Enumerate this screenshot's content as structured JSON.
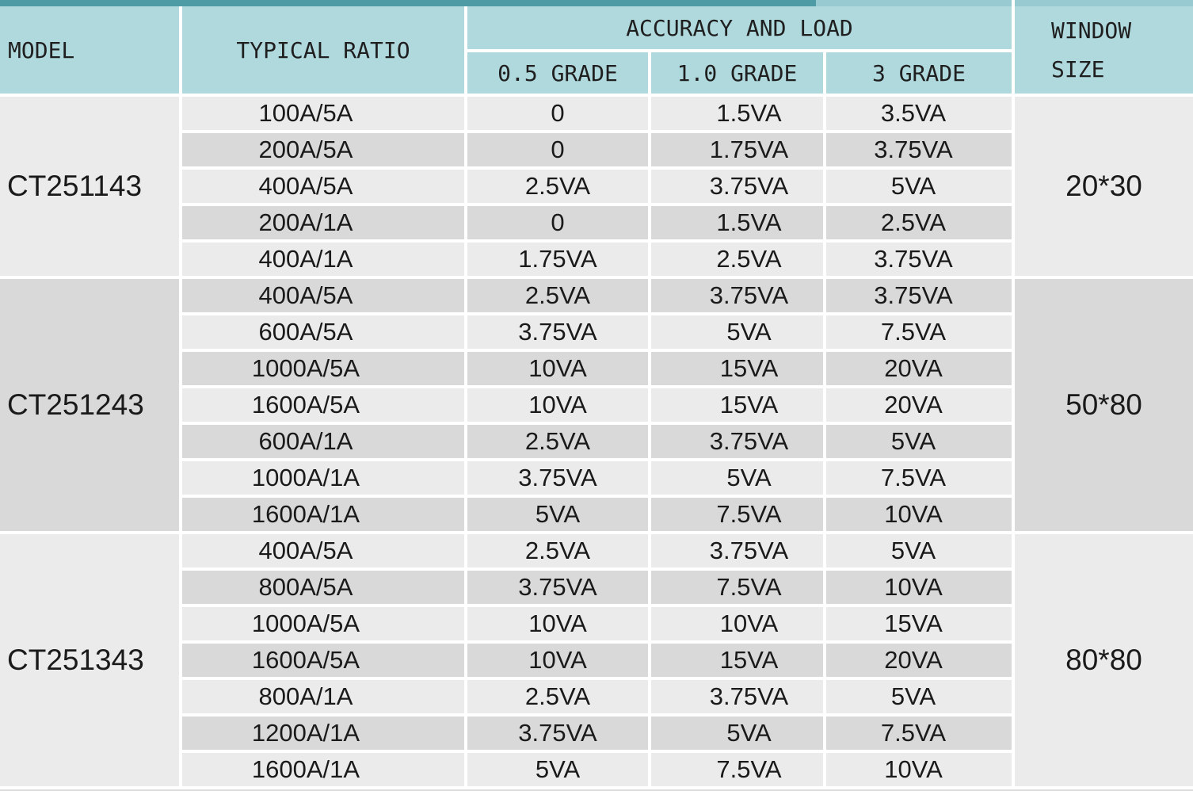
{
  "table": {
    "header": {
      "model": "MODEL",
      "typical_ratio": "TYPICAL RATIO",
      "accuracy_and_load": "ACCURACY AND LOAD",
      "grade_05": "0.5 GRADE",
      "grade_10": "1.0 GRADE",
      "grade_3": "3 GRADE",
      "window_size": "WINDOW SIZE"
    },
    "groups": [
      {
        "model": "CT251143",
        "window_size": "20*30",
        "rows": [
          {
            "ratio": "100A/5A",
            "g05": "0",
            "g10": "1.5VA",
            "g3": "3.5VA"
          },
          {
            "ratio": "200A/5A",
            "g05": "0",
            "g10": "1.75VA",
            "g3": "3.75VA"
          },
          {
            "ratio": "400A/5A",
            "g05": "2.5VA",
            "g10": "3.75VA",
            "g3": "5VA"
          },
          {
            "ratio": "200A/1A",
            "g05": "0",
            "g10": "1.5VA",
            "g3": "2.5VA"
          },
          {
            "ratio": "400A/1A",
            "g05": "1.75VA",
            "g10": "2.5VA",
            "g3": "3.75VA"
          }
        ]
      },
      {
        "model": "CT251243",
        "window_size": "50*80",
        "rows": [
          {
            "ratio": "400A/5A",
            "g05": "2.5VA",
            "g10": "3.75VA",
            "g3": "3.75VA"
          },
          {
            "ratio": "600A/5A",
            "g05": "3.75VA",
            "g10": "5VA",
            "g3": "7.5VA"
          },
          {
            "ratio": "1000A/5A",
            "g05": "10VA",
            "g10": "15VA",
            "g3": "20VA"
          },
          {
            "ratio": "1600A/5A",
            "g05": "10VA",
            "g10": "15VA",
            "g3": "20VA"
          },
          {
            "ratio": "600A/1A",
            "g05": "2.5VA",
            "g10": "3.75VA",
            "g3": "5VA"
          },
          {
            "ratio": "1000A/1A",
            "g05": "3.75VA",
            "g10": "5VA",
            "g3": "7.5VA"
          },
          {
            "ratio": "1600A/1A",
            "g05": "5VA",
            "g10": "7.5VA",
            "g3": "10VA"
          }
        ]
      },
      {
        "model": "CT251343",
        "window_size": "80*80",
        "rows": [
          {
            "ratio": "400A/5A",
            "g05": "2.5VA",
            "g10": "3.75VA",
            "g3": "5VA"
          },
          {
            "ratio": "800A/5A",
            "g05": "3.75VA",
            "g10": "7.5VA",
            "g3": "10VA"
          },
          {
            "ratio": "1000A/5A",
            "g05": "10VA",
            "g10": "10VA",
            "g3": "15VA"
          },
          {
            "ratio": "1600A/5A",
            "g05": "10VA",
            "g10": "15VA",
            "g3": "20VA"
          },
          {
            "ratio": "800A/1A",
            "g05": "2.5VA",
            "g10": "3.75VA",
            "g3": "5VA"
          },
          {
            "ratio": "1200A/1A",
            "g05": "3.75VA",
            "g10": "5VA",
            "g3": "7.5VA"
          },
          {
            "ratio": "1600A/1A",
            "g05": "5VA",
            "g10": "7.5VA",
            "g3": "10VA"
          }
        ]
      }
    ]
  },
  "colors": {
    "header_fill": "#b0d9de",
    "accent_bar_dark": "#4e9ba6",
    "accent_bar_light": "#97cbd1",
    "row_light": "#ebebeb",
    "row_dark": "#d9d9d9",
    "grid_line": "#ffffff",
    "text": "#1a1a1a"
  }
}
